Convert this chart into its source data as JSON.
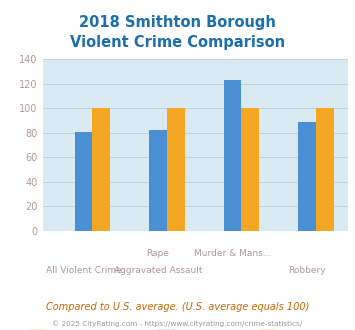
{
  "title": "2018 Smithton Borough\nViolent Crime Comparison",
  "xlabels_top": [
    "",
    "Rape",
    "Murder & Mans...",
    ""
  ],
  "xlabels_bottom": [
    "All Violent Crime",
    "Aggravated Assault",
    "",
    "Robbery"
  ],
  "series": {
    "Smithton Borough": [
      0,
      0,
      0,
      0
    ],
    "Pennsylvania": [
      81,
      82,
      123,
      89
    ],
    "National": [
      100,
      100,
      100,
      100
    ]
  },
  "series_colors": {
    "Smithton Borough": "#8dc63f",
    "Pennsylvania": "#4b8fd4",
    "National": "#f5a623"
  },
  "ylim": [
    0,
    140
  ],
  "yticks": [
    0,
    20,
    40,
    60,
    80,
    100,
    120,
    140
  ],
  "title_color": "#1a6faf",
  "title_fontsize": 10.5,
  "bg_color": "#daeaf3",
  "grid_color": "#c0d4e0",
  "tick_color": "#b09898",
  "footnote1": "Compared to U.S. average. (U.S. average equals 100)",
  "footnote2": "© 2025 CityRating.com - https://www.cityrating.com/crime-statistics/",
  "footnote1_color": "#cc6600",
  "footnote2_color": "#999999"
}
